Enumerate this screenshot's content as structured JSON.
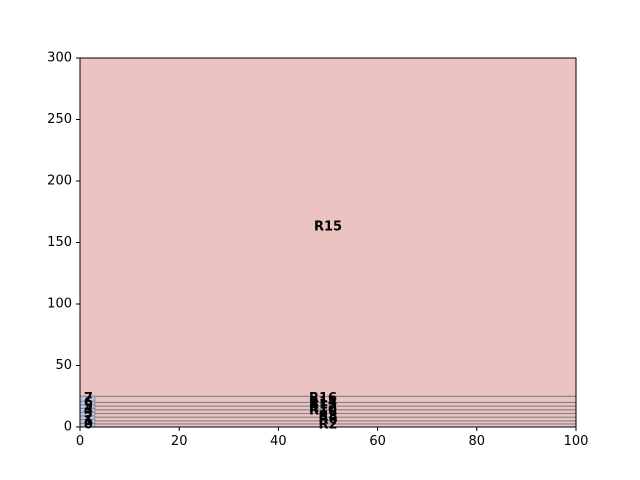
{
  "chart_data": {
    "type": "area",
    "title": "",
    "xlabel": "",
    "ylabel": "",
    "xlim": [
      0,
      100
    ],
    "ylim": [
      0,
      300
    ],
    "x_ticks": [
      0,
      20,
      40,
      60,
      80,
      100
    ],
    "y_ticks": [
      0,
      50,
      100,
      150,
      200,
      250,
      300
    ],
    "grid": false,
    "colors": {
      "large_region_fill": "#ebc4c2",
      "small_region_fill": "#b8c4e2",
      "edge": "#808080"
    },
    "large_regions": [
      {
        "label": "R2",
        "x": [
          0,
          100
        ],
        "y": [
          0,
          2.5
        ],
        "label_at": [
          50,
          1.5
        ]
      },
      {
        "label": "R6",
        "x": [
          0,
          100
        ],
        "y": [
          2.5,
          5
        ],
        "label_at": [
          50,
          5.5
        ]
      },
      {
        "label": "R8",
        "x": [
          0,
          100
        ],
        "y": [
          5,
          8
        ],
        "label_at": [
          50,
          8
        ]
      },
      {
        "label": "R10",
        "x": [
          0,
          100
        ],
        "y": [
          8,
          11
        ],
        "label_at": [
          49,
          13
        ]
      },
      {
        "label": "R12",
        "x": [
          0,
          100
        ],
        "y": [
          11,
          14
        ],
        "label_at": [
          49,
          15
        ]
      },
      {
        "label": "R13",
        "x": [
          0,
          100
        ],
        "y": [
          14,
          17
        ],
        "label_at": [
          49,
          18
        ]
      },
      {
        "label": "R14",
        "x": [
          0,
          100
        ],
        "y": [
          17,
          20
        ],
        "label_at": [
          49,
          20
        ]
      },
      {
        "label": "R16",
        "x": [
          0,
          100
        ],
        "y": [
          20,
          25
        ],
        "label_at": [
          49,
          23
        ]
      },
      {
        "label": "R15",
        "x": [
          0,
          100
        ],
        "y": [
          25,
          300
        ],
        "label_at": [
          50,
          162.5
        ]
      }
    ],
    "small_regions": [
      {
        "label": "0",
        "x": [
          0,
          3
        ],
        "y": [
          0,
          3
        ],
        "label_at": [
          1.5,
          1.5
        ]
      },
      {
        "label": "1",
        "x": [
          0,
          3
        ],
        "y": [
          3,
          6
        ],
        "label_at": [
          1.5,
          4.5
        ]
      },
      {
        "label": "2",
        "x": [
          0,
          3
        ],
        "y": [
          6,
          9
        ],
        "label_at": [
          1.5,
          7.5
        ]
      },
      {
        "label": "3",
        "x": [
          0,
          3
        ],
        "y": [
          9,
          12
        ],
        "label_at": [
          1.5,
          10.5
        ]
      },
      {
        "label": "4",
        "x": [
          0,
          3
        ],
        "y": [
          12,
          15
        ],
        "label_at": [
          1.5,
          13.5
        ]
      },
      {
        "label": "5",
        "x": [
          0,
          3
        ],
        "y": [
          15,
          18
        ],
        "label_at": [
          1.5,
          16.5
        ]
      },
      {
        "label": "6",
        "x": [
          0,
          3
        ],
        "y": [
          18,
          21
        ],
        "label_at": [
          1.5,
          19.5
        ]
      },
      {
        "label": "7",
        "x": [
          0,
          3
        ],
        "y": [
          21,
          25
        ],
        "label_at": [
          1.5,
          23
        ]
      }
    ]
  }
}
